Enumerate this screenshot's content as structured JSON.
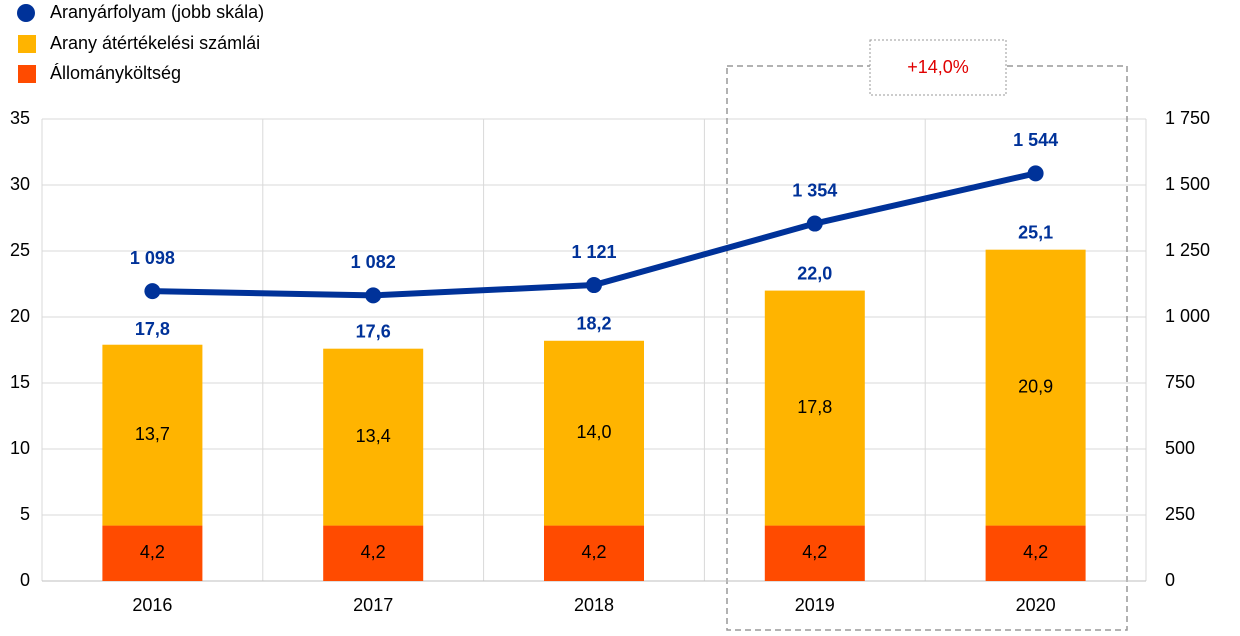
{
  "chart_data": {
    "type": "bar",
    "categories": [
      "2016",
      "2017",
      "2018",
      "2019",
      "2020"
    ],
    "series": [
      {
        "name": "Aranyárfolyam (jobb skála)",
        "type": "line",
        "axis": "y2",
        "color": "#003299",
        "values": [
          1098,
          1082,
          1121,
          1354,
          1544
        ],
        "value_labels": [
          "1 098",
          "1 082",
          "1 121",
          "1 354",
          "1 544"
        ]
      },
      {
        "name": "Arany átértékelési számlái",
        "type": "bar",
        "color": "#ffb400",
        "values": [
          13.7,
          13.4,
          14.0,
          17.8,
          20.9
        ],
        "value_labels": [
          "13,7",
          "13,4",
          "14,0",
          "17,8",
          "20,9"
        ]
      },
      {
        "name": "Állományköltség",
        "type": "bar",
        "color": "#ff4b00",
        "values": [
          4.2,
          4.2,
          4.2,
          4.2,
          4.2
        ],
        "value_labels": [
          "4,2",
          "4,2",
          "4,2",
          "4,2",
          "4,2"
        ]
      }
    ],
    "totals": {
      "values": [
        17.8,
        17.6,
        18.2,
        22.0,
        25.1
      ],
      "value_labels": [
        "17,8",
        "17,6",
        "18,2",
        "22,0",
        "25,1"
      ]
    },
    "annotation": "+14,0%",
    "ylim": [
      0,
      35
    ],
    "yticks": [
      0,
      5,
      10,
      15,
      20,
      25,
      30,
      35
    ],
    "y2lim": [
      0,
      1750
    ],
    "y2ticks": [
      0,
      250,
      500,
      750,
      {
        "value": 1000,
        "label": "1 000"
      },
      {
        "value": 1250,
        "label": "1 250"
      },
      {
        "value": 1500,
        "label": "1 500"
      },
      {
        "value": 1750,
        "label": "1 750"
      }
    ],
    "grid": true,
    "legend": "top-left"
  }
}
